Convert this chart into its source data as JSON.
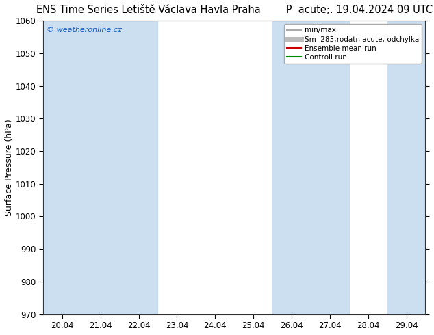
{
  "title_left": "ENS Time Series Letiště Václava Havla Praha",
  "title_right": "P  acute;. 19.04.2024 09 UTC",
  "ylabel": "Surface Pressure (hPa)",
  "watermark": "© weatheronline.cz",
  "ylim": [
    970,
    1060
  ],
  "yticks": [
    970,
    980,
    990,
    1000,
    1010,
    1020,
    1030,
    1040,
    1050,
    1060
  ],
  "xtick_labels": [
    "20.04",
    "21.04",
    "22.04",
    "23.04",
    "24.04",
    "25.04",
    "26.04",
    "27.04",
    "28.04",
    "29.04"
  ],
  "x_values": [
    0,
    1,
    2,
    3,
    4,
    5,
    6,
    7,
    8,
    9
  ],
  "shaded_columns": [
    0,
    1,
    2,
    6,
    7,
    9
  ],
  "shaded_color": "#ccdff0",
  "bg_color": "#ffffff",
  "plot_bg_color": "#ffffff",
  "legend_items": [
    {
      "label": "min/max",
      "color": "#aaaaaa",
      "lw": 1.5,
      "style": "-"
    },
    {
      "label": "Sm  283;rodatn acute; odchylka",
      "color": "#bbbbbb",
      "lw": 5,
      "style": "-"
    },
    {
      "label": "Ensemble mean run",
      "color": "#cc0000",
      "lw": 1.5,
      "style": "-"
    },
    {
      "label": "Controll run",
      "color": "#008800",
      "lw": 1.5,
      "style": "-"
    }
  ],
  "title_fontsize": 10.5,
  "tick_fontsize": 8.5,
  "ylabel_fontsize": 9
}
